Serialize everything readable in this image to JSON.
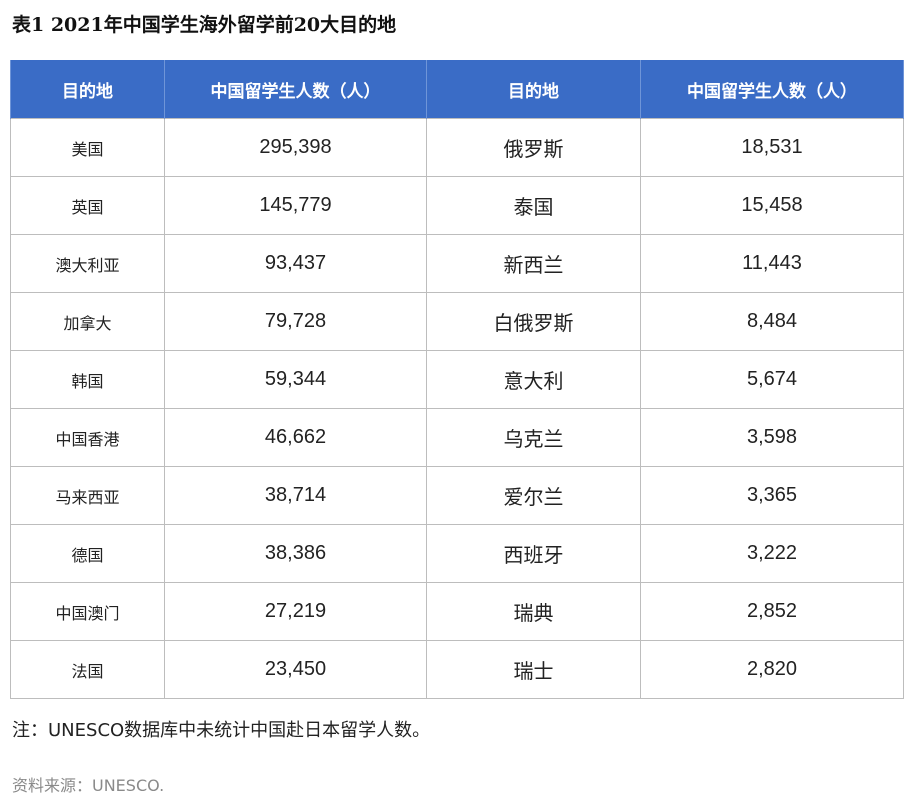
{
  "title": "表1 2021年中国学生海外留学前20大目的地",
  "headers": [
    "目的地",
    "中国留学生人数（人）",
    "目的地",
    "中国留学生人数（人）"
  ],
  "rows": [
    {
      "dest_l": "美国",
      "num_l": "295,398",
      "dest_r": "俄罗斯",
      "num_r": "18,531"
    },
    {
      "dest_l": "英国",
      "num_l": "145,779",
      "dest_r": "泰国",
      "num_r": "15,458"
    },
    {
      "dest_l": "澳大利亚",
      "num_l": "93,437",
      "dest_r": "新西兰",
      "num_r": "11,443"
    },
    {
      "dest_l": "加拿大",
      "num_l": "79,728",
      "dest_r": "白俄罗斯",
      "num_r": "8,484"
    },
    {
      "dest_l": "韩国",
      "num_l": "59,344",
      "dest_r": "意大利",
      "num_r": "5,674"
    },
    {
      "dest_l": "中国香港",
      "num_l": "46,662",
      "dest_r": "乌克兰",
      "num_r": "3,598"
    },
    {
      "dest_l": "马来西亚",
      "num_l": "38,714",
      "dest_r": "爱尔兰",
      "num_r": "3,365"
    },
    {
      "dest_l": "德国",
      "num_l": "38,386",
      "dest_r": "西班牙",
      "num_r": "3,222"
    },
    {
      "dest_l": "中国澳门",
      "num_l": "27,219",
      "dest_r": "瑞典",
      "num_r": "2,852"
    },
    {
      "dest_l": "法国",
      "num_l": "23,450",
      "dest_r": "瑞士",
      "num_r": "2,820"
    }
  ],
  "note": "注：UNESCO数据库中未统计中国赴日本留学人数。",
  "source": "资料来源：UNESCO.",
  "colors": {
    "header_bg": "#3a6cc6",
    "header_text": "#ffffff",
    "border": "#bdbdbd"
  }
}
